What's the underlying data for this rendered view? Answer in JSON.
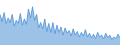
{
  "chart_data": {
    "type": "area",
    "values": [
      68,
      52,
      72,
      48,
      60,
      50,
      68,
      42,
      55,
      48,
      70,
      44,
      58,
      46,
      80,
      60,
      85,
      55,
      68,
      38,
      50,
      36,
      58,
      30,
      48,
      28,
      50,
      25,
      44,
      28,
      40,
      22,
      38,
      26,
      32,
      20,
      36,
      22,
      30,
      18,
      28,
      20,
      34,
      18,
      26,
      16,
      24,
      14,
      28,
      18,
      22,
      14,
      26,
      16,
      22,
      12,
      18,
      14,
      24,
      16
    ],
    "color": "#4a90d4",
    "ylim": [
      0,
      100
    ],
    "grid": false,
    "tick_labels": false
  }
}
